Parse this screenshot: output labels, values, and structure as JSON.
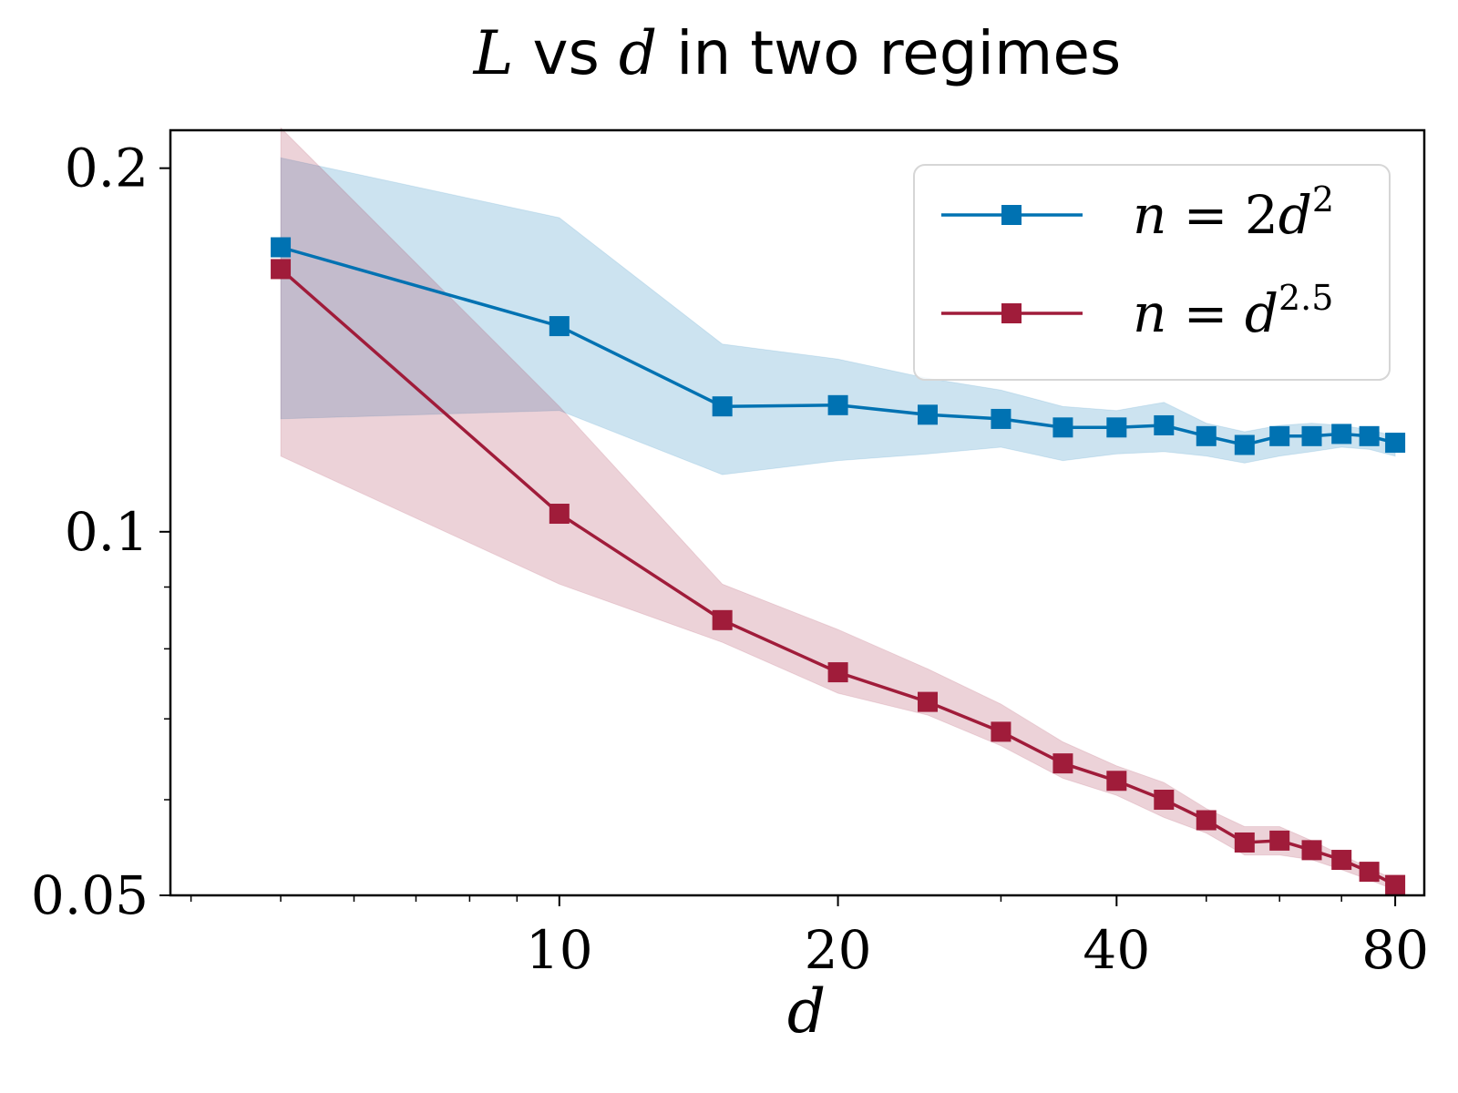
{
  "chart_data": {
    "type": "line",
    "title": {
      "var1": "L",
      "middle": " vs ",
      "var2": "d",
      "suffix": " in two regimes"
    },
    "xlabel": "d",
    "ylabel": "",
    "x_scale": "log",
    "y_scale": "log",
    "xlim": [
      3.8,
      86
    ],
    "ylim": [
      0.05,
      0.215
    ],
    "x_ticks": [
      10,
      20,
      40,
      80
    ],
    "x_tick_labels": [
      "10",
      "20",
      "40",
      "80"
    ],
    "y_ticks": [
      0.05,
      0.1,
      0.2
    ],
    "y_tick_labels": [
      "0.05",
      "0.1",
      "0.2"
    ],
    "grid": false,
    "legend_position": "top-right",
    "x": [
      5,
      10,
      15,
      20,
      25,
      30,
      35,
      40,
      45,
      50,
      55,
      60,
      65,
      70,
      75,
      80
    ],
    "series": [
      {
        "name": "n = 2d^2",
        "legend": {
          "lhs": "n",
          "eq": " = ",
          "coef": "2",
          "base": "d",
          "exp": "2"
        },
        "color": "#0072b2",
        "marker": "square",
        "values": [
          0.172,
          0.148,
          0.127,
          0.1273,
          0.125,
          0.124,
          0.122,
          0.122,
          0.1225,
          0.12,
          0.118,
          0.12,
          0.12,
          0.1205,
          0.12,
          0.1185
        ],
        "band_upper": [
          0.204,
          0.182,
          0.143,
          0.139,
          0.134,
          0.131,
          0.127,
          0.126,
          0.128,
          0.123,
          0.121,
          0.1225,
          0.123,
          0.1225,
          0.1215,
          0.12
        ],
        "band_lower": [
          0.124,
          0.126,
          0.1115,
          0.1145,
          0.116,
          0.1175,
          0.1145,
          0.116,
          0.1165,
          0.1155,
          0.114,
          0.1155,
          0.1165,
          0.1175,
          0.117,
          0.1155
        ]
      },
      {
        "name": "n = d^2.5",
        "legend": {
          "lhs": "n",
          "eq": " = ",
          "coef": "",
          "base": "d",
          "exp": "2.5"
        },
        "color": "#a01c3a",
        "marker": "square",
        "values": [
          0.165,
          0.1035,
          0.0845,
          0.0765,
          0.0723,
          0.0683,
          0.0643,
          0.0622,
          0.06,
          0.0577,
          0.0553,
          0.0555,
          0.0545,
          0.0535,
          0.0523,
          0.051
        ],
        "band_upper": [
          0.216,
          0.127,
          0.0905,
          0.083,
          0.077,
          0.072,
          0.067,
          0.064,
          0.062,
          0.059,
          0.057,
          0.057,
          0.0555,
          0.054,
          0.0527,
          0.0515
        ],
        "band_lower": [
          0.1155,
          0.0905,
          0.081,
          0.0735,
          0.0705,
          0.0665,
          0.0625,
          0.0605,
          0.058,
          0.0563,
          0.054,
          0.054,
          0.0535,
          0.0525,
          0.0515,
          0.0505
        ]
      }
    ]
  }
}
